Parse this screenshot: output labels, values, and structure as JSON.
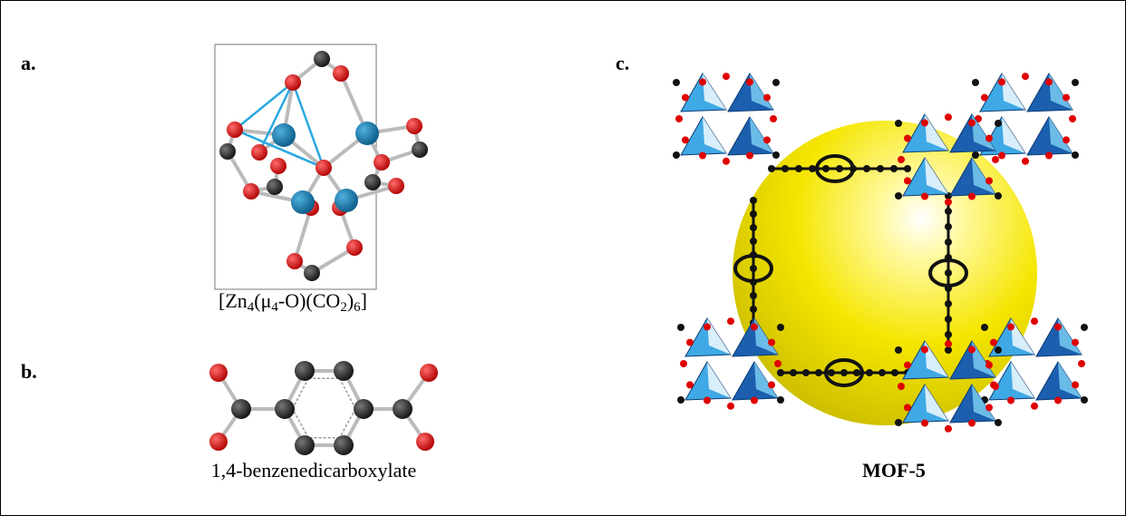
{
  "panels": {
    "a": {
      "label": "a.",
      "caption": {
        "parts": [
          "[Zn",
          "4",
          "(μ",
          "4",
          "-O)(CO",
          "2",
          ")",
          "6",
          "]"
        ]
      }
    },
    "b": {
      "label": "b.",
      "caption": "1,4-benzenedicarboxylate"
    },
    "c": {
      "label": "c.",
      "caption": "MOF-5"
    }
  }
}
